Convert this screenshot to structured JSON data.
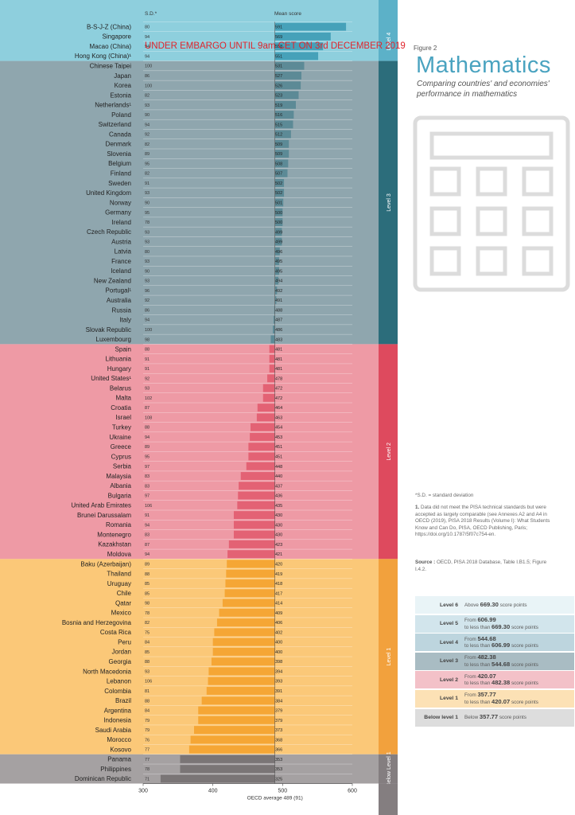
{
  "figure_label": "Figure 2",
  "title": "Mathematics",
  "subtitle": "Comparing countries' and economies' performance in mathematics",
  "embargo": "UNDER EMBARGO UNTIL 9am CET ON 3rd DECEMBER 2019",
  "notes": {
    "sd": "*S.D. = standard deviation",
    "fn1_num": "1.",
    "fn1": " Data did not meet the PISA technical standards but were accepted as largely comparable (see Annexes A2 and A4 in OECD (2019), PISA 2018 Results (Volume I): What Students Know and Can Do, PISA, OECD Publishing, Paris; https://doi.org/10.1787/5f07c754-en.",
    "source_label": "Source :",
    "source": " OECD, PISA 2018 Database, Table I.B1.5; Figure I.4.2."
  },
  "legend": [
    {
      "name": "Level 6",
      "pre": "Above ",
      "from": "669.30",
      "mid": "",
      "to": "",
      "post": " score points"
    },
    {
      "name": "Level 5",
      "pre": "From ",
      "from": "606.99",
      "mid": "to less than ",
      "to": "669.30",
      "post": " score points"
    },
    {
      "name": "Level 4",
      "pre": "From ",
      "from": "544.68",
      "mid": "to less than ",
      "to": "606.99",
      "post": " score points"
    },
    {
      "name": "Level 3",
      "pre": "From ",
      "from": "482.38",
      "mid": "to less than ",
      "to": "544.68",
      "post": " score points"
    },
    {
      "name": "Level 2",
      "pre": "From ",
      "from": "420.07",
      "mid": "to less than ",
      "to": "482.38",
      "post": " score points"
    },
    {
      "name": "Level 1",
      "pre": "From ",
      "from": "357.77",
      "mid": "to less than ",
      "to": "420.07",
      "post": " score points"
    },
    {
      "name": "Below level 1",
      "pre": "Below ",
      "from": "357.77",
      "mid": "",
      "to": "",
      "post": " score points"
    }
  ],
  "colors": {
    "level4": "#8ecfdd",
    "level3": "#8fa6ae",
    "level2": "#ee9aa5",
    "level1": "#fbc878",
    "below": "#a5a1a2",
    "level4_band": "#5cb1c8",
    "level3_band": "#2c6d7b",
    "level2_band": "#de4a5e",
    "level1_band": "#f2a13d",
    "below_band": "#847e80",
    "bar_level4": "#46a1b9",
    "bar_level3": "#5c8a96",
    "bar_level2": "#e36274",
    "bar_level1": "#f5a635",
    "bar_below": "#7a7576",
    "legend_level6": "#e9f4f7",
    "legend_level5": "#d2e5ec",
    "legend_level4": "#bdd5de",
    "legend_level3": "#a9bcc3",
    "legend_level2": "#f3c1c8",
    "legend_level1": "#fce1b5",
    "legend_below": "#dddddd"
  },
  "chart_data": {
    "type": "bar",
    "orientation": "horizontal",
    "sd_header": "S.D.*",
    "mean_header": "Mean score",
    "xlabel": "OECD average 489 (91)",
    "xlim": [
      300,
      600
    ],
    "xticks": [
      "300",
      "400",
      "500",
      "600"
    ],
    "reference_line": 489,
    "countries": [
      "B-S-J-Z (China)",
      "Singapore",
      "Macao (China)",
      "Hong Kong (China)¹",
      "Chinese Taipei",
      "Japan",
      "Korea",
      "Estonia",
      "Netherlands¹",
      "Poland",
      "Switzerland",
      "Canada",
      "Denmark",
      "Slovenia",
      "Belgium",
      "Finland",
      "Sweden",
      "United Kingdom",
      "Norway",
      "Germany",
      "Ireland",
      "Czech Republic",
      "Austria",
      "Latvia",
      "France",
      "Iceland",
      "New Zealand",
      "Portugal¹",
      "Australia",
      "Russia",
      "Italy",
      "Slovak Republic",
      "Luxembourg",
      "Spain",
      "Lithuania",
      "Hungary",
      "United States¹",
      "Belarus",
      "Malta",
      "Croatia",
      "Israel",
      "Turkey",
      "Ukraine",
      "Greece",
      "Cyprus",
      "Serbia",
      "Malaysia",
      "Albania",
      "Bulgaria",
      "United Arab Emirates",
      "Brunei Darussalam",
      "Romania",
      "Montenegro",
      "Kazakhstan",
      "Moldova",
      "Baku (Azerbaijan)",
      "Thailand",
      "Uruguay",
      "Chile",
      "Qatar",
      "Mexico",
      "Bosnia and Herzegovina",
      "Costa Rica",
      "Peru",
      "Jordan",
      "Georgia",
      "North Macedonia",
      "Lebanon",
      "Colombia",
      "Brazil",
      "Argentina",
      "Indonesia",
      "Saudi Arabia",
      "Morocco",
      "Kosovo",
      "Panama",
      "Philippines",
      "Dominican Republic"
    ],
    "sd": [
      "80",
      "94",
      "94",
      "94",
      "100",
      "86",
      "100",
      "82",
      "93",
      "90",
      "94",
      "92",
      "82",
      "89",
      "95",
      "82",
      "91",
      "93",
      "90",
      "95",
      "78",
      "93",
      "93",
      "80",
      "93",
      "90",
      "93",
      "96",
      "92",
      "86",
      "94",
      "100",
      "98",
      "88",
      "91",
      "91",
      "92",
      "93",
      "102",
      "87",
      "108",
      "88",
      "94",
      "89",
      "95",
      "97",
      "83",
      "83",
      "97",
      "106",
      "91",
      "94",
      "83",
      "87",
      "94",
      "89",
      "88",
      "85",
      "85",
      "98",
      "78",
      "82",
      "75",
      "84",
      "85",
      "88",
      "93",
      "106",
      "81",
      "88",
      "84",
      "79",
      "79",
      "76",
      "77",
      "77",
      "78",
      "71"
    ],
    "mean": [
      591,
      569,
      558,
      551,
      531,
      527,
      526,
      523,
      519,
      516,
      515,
      512,
      509,
      509,
      508,
      507,
      502,
      502,
      501,
      500,
      500,
      499,
      499,
      496,
      495,
      495,
      494,
      492,
      491,
      488,
      487,
      486,
      483,
      481,
      481,
      481,
      478,
      472,
      472,
      464,
      463,
      454,
      453,
      451,
      451,
      448,
      440,
      437,
      436,
      435,
      430,
      430,
      430,
      423,
      421,
      420,
      419,
      418,
      417,
      414,
      409,
      406,
      402,
      400,
      400,
      398,
      394,
      393,
      391,
      384,
      379,
      379,
      373,
      368,
      366,
      353,
      353,
      325
    ],
    "groups": [
      {
        "name": "Level 4",
        "rows": 4
      },
      {
        "name": "Level 3",
        "rows": 29
      },
      {
        "name": "Level 2",
        "rows": 22
      },
      {
        "name": "Level 1",
        "rows": 20
      },
      {
        "name": "Below Level 1",
        "rows": 3
      }
    ]
  }
}
